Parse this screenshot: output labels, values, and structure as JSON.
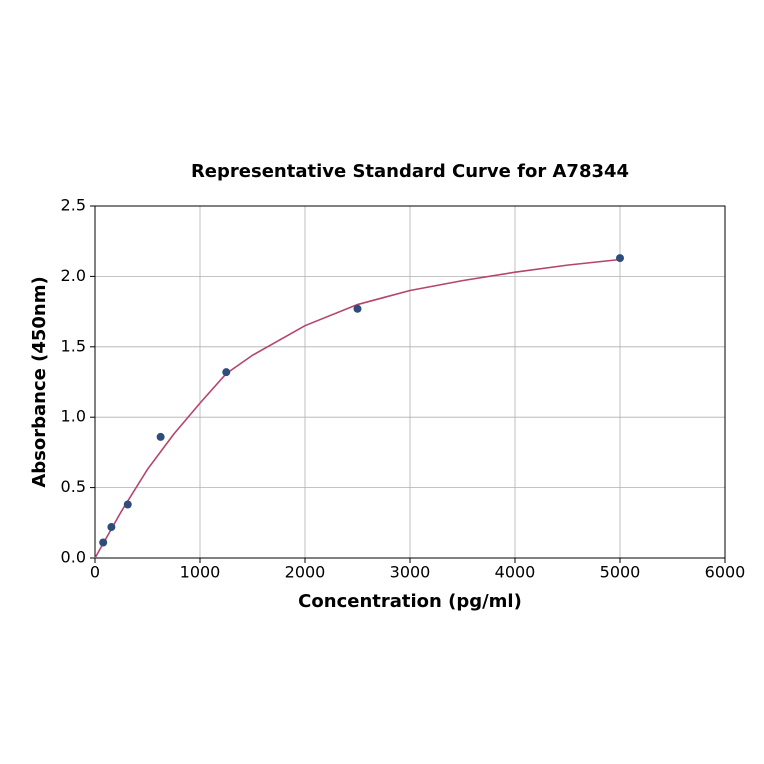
{
  "chart_data": {
    "type": "scatter",
    "title": "Representative Standard Curve for A78344",
    "x_label": "Concentration (pg/ml)",
    "y_label": "Absorbance (450nm)",
    "xlim": [
      0,
      6000
    ],
    "ylim": [
      0,
      2.5
    ],
    "xticks": [
      0,
      1000,
      2000,
      3000,
      4000,
      5000,
      6000
    ],
    "yticks": [
      {
        "value": 0,
        "label": "0.0"
      },
      0.5,
      {
        "value": 1,
        "label": "1.0"
      },
      1.5,
      {
        "value": 2,
        "label": "2.0"
      },
      2.5
    ],
    "grid": true,
    "series": [
      {
        "type": "line",
        "color": "#b5446e",
        "x": [
          0,
          250,
          500,
          750,
          1000,
          1250,
          1500,
          2000,
          2500,
          3000,
          3500,
          4000,
          4500,
          5000
        ],
        "values": [
          0,
          0.33,
          0.63,
          0.88,
          1.1,
          1.31,
          1.44,
          1.65,
          1.8,
          1.9,
          1.97,
          2.03,
          2.08,
          2.12
        ]
      },
      {
        "type": "scatter",
        "color": "#2e4d7a",
        "x": [
          78,
          156,
          312,
          625,
          1250,
          2500,
          5000
        ],
        "values": [
          0.11,
          0.22,
          0.38,
          0.86,
          1.32,
          1.77,
          2.13
        ]
      }
    ]
  }
}
